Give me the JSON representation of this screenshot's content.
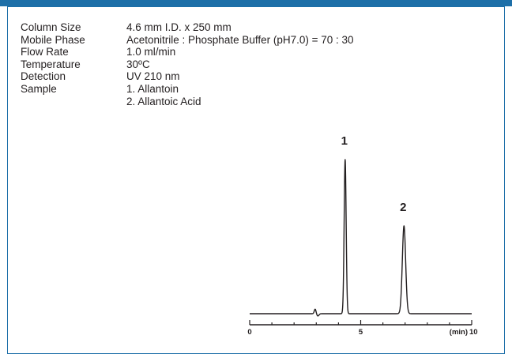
{
  "colors": {
    "accent": "#1d6fa8",
    "trace": "#231f20"
  },
  "conditions": [
    {
      "label": "Column Size",
      "value": "4.6 mm I.D. x 250 mm"
    },
    {
      "label": "Mobile Phase",
      "value": "Acetonitrile : Phosphate Buffer (pH7.0) = 70 : 30"
    },
    {
      "label": "Flow Rate",
      "value": "1.0 ml/min"
    },
    {
      "label": "Temperature",
      "value": "30ºC"
    },
    {
      "label": "Detection",
      "value": "UV 210 nm"
    },
    {
      "label": "Sample",
      "value": "1. Allantoin"
    },
    {
      "label": "",
      "value": "2. Allantoic Acid"
    }
  ],
  "chart_data": {
    "type": "line",
    "xlabel": "(min)",
    "xlim": [
      0,
      10
    ],
    "x_ticks": [
      0,
      5,
      10
    ],
    "x_tick_labels": [
      "0",
      "5",
      "10"
    ],
    "y_axis_shown": false,
    "baseline": 0,
    "peaks": [
      {
        "label": "1",
        "retention_time": 4.3,
        "height": 100
      },
      {
        "label": "2",
        "retention_time": 6.95,
        "height": 57
      }
    ],
    "minor_peaks": [
      {
        "retention_time": 2.95,
        "height": 3
      }
    ]
  }
}
